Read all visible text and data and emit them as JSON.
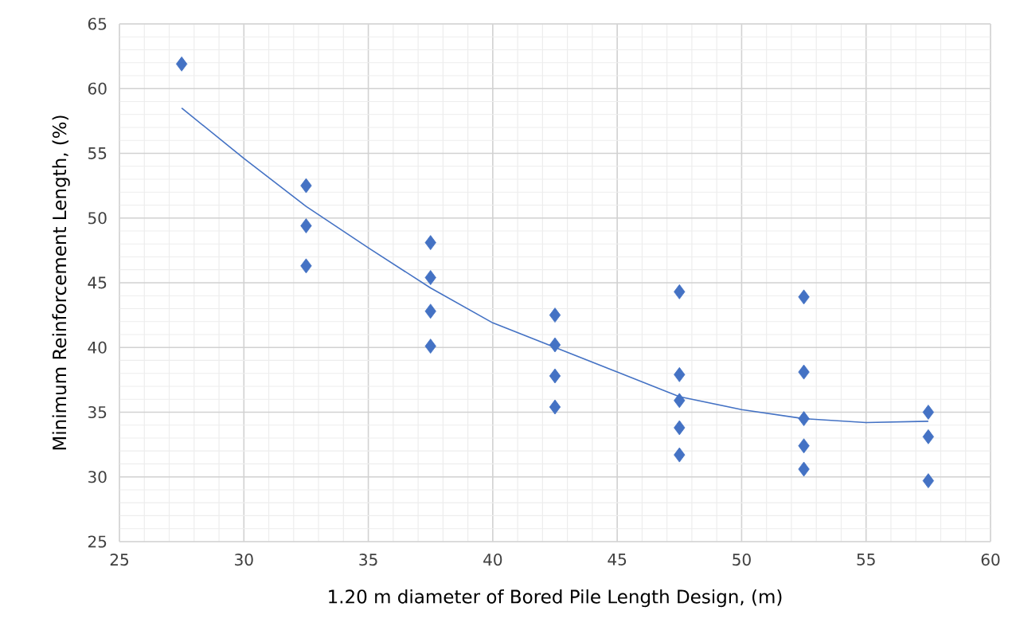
{
  "chart_data": {
    "type": "scatter",
    "xlabel": "1.20 m diameter of Bored Pile Length Design, (m)",
    "ylabel": "Minimum Reinforcement Length, (%)",
    "xlim": [
      25,
      60
    ],
    "xticks": [
      25,
      30,
      35,
      40,
      45,
      50,
      55,
      60
    ],
    "ylim": [
      25,
      65
    ],
    "yticks": [
      25,
      30,
      35,
      40,
      45,
      50,
      55,
      60,
      65
    ],
    "grid": true,
    "series": [
      {
        "marker": "diamond",
        "color": "#4472c4",
        "x": [
          27.5,
          32.5,
          32.5,
          32.5,
          37.5,
          37.5,
          37.5,
          37.5,
          42.5,
          42.5,
          42.5,
          42.5,
          47.5,
          47.5,
          47.5,
          47.5,
          47.5,
          52.5,
          52.5,
          52.5,
          52.5,
          52.5,
          57.5,
          57.5,
          57.5
        ],
        "values": [
          61.9,
          52.5,
          49.4,
          46.3,
          48.1,
          45.4,
          42.8,
          40.1,
          42.5,
          40.2,
          37.8,
          35.4,
          44.3,
          37.9,
          35.9,
          33.8,
          31.7,
          43.9,
          38.1,
          34.5,
          32.4,
          30.6,
          35.0,
          33.1,
          29.7
        ]
      },
      {
        "type": "line",
        "marker": "none",
        "line_style": "solid",
        "color": "#4472c4",
        "x": [
          27.5,
          30,
          32.5,
          35,
          37.5,
          40,
          42.5,
          45,
          47.5,
          50,
          52.5,
          55,
          57.5
        ],
        "values": [
          58.5,
          54.6,
          50.9,
          47.7,
          44.6,
          41.9,
          40.0,
          38.1,
          36.2,
          35.2,
          34.5,
          34.2,
          34.3
        ]
      }
    ]
  }
}
